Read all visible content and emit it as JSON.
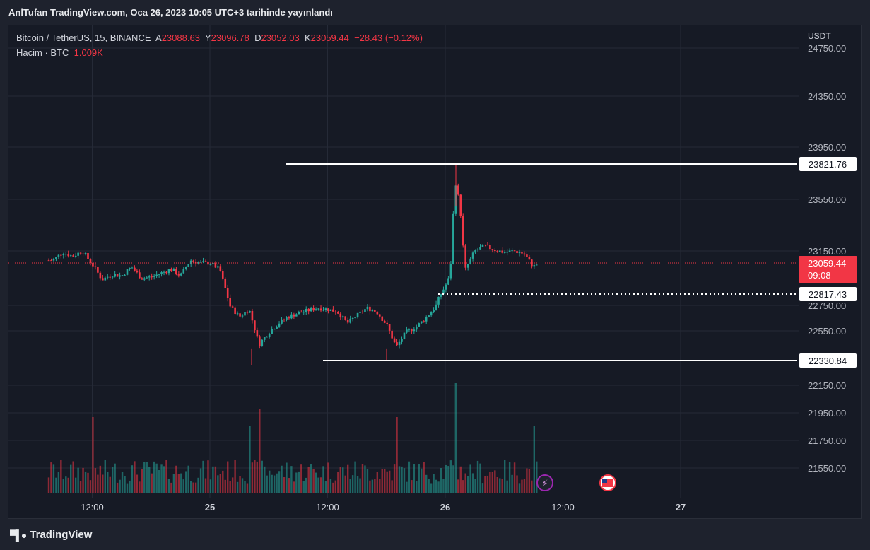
{
  "header": {
    "published_text": "AnlTufan TradingView.com, Oca 26, 2023 10:05 UTC+3 tarihinde yayınlandı"
  },
  "legend": {
    "symbol": "Bitcoin / TetherUS, 15, BINANCE",
    "open_label": "A",
    "open": "23088.63",
    "high_label": "Y",
    "high": "23096.78",
    "low_label": "D",
    "low": "23052.03",
    "close_label": "K",
    "close": "23059.44",
    "change": "−28.43 (−0.12%)",
    "volume_label": "Hacim · BTC",
    "volume": "1.009K"
  },
  "price_axis": {
    "currency": "USDT",
    "ticks": [
      "24750.00",
      "24350.00",
      "23950.00",
      "23550.00",
      "23150.00",
      "22750.00",
      "22550.00",
      "22150.00",
      "21950.00",
      "21750.00",
      "21550.00"
    ],
    "current_price": "23059.44",
    "countdown": "09:08"
  },
  "time_axis": {
    "ticks": [
      "12:00",
      "25",
      "12:00",
      "26",
      "12:00",
      "27"
    ]
  },
  "brand": {
    "name": "TradingView"
  },
  "colors": {
    "up": "#26a69a",
    "down": "#f23645",
    "current": "#f23645",
    "background": "#161a25",
    "grid": "#252a37"
  },
  "chart_data": {
    "type": "candlestick",
    "symbol": "Bitcoin / TetherUS",
    "interval": "15",
    "exchange": "BINANCE",
    "y_unit": "USDT",
    "horizontal_levels": [
      {
        "value": 23821.76,
        "style": "solid",
        "color": "#ffffff"
      },
      {
        "value": 22817.43,
        "style": "dotted",
        "color": "#ffffff"
      },
      {
        "value": 22330.84,
        "style": "solid",
        "color": "#ffffff"
      }
    ],
    "close_path": [
      [
        "2023-01-24 08:00",
        23080
      ],
      [
        "2023-01-24 09:00",
        23140
      ],
      [
        "2023-01-24 10:00",
        23110
      ],
      [
        "2023-01-24 11:00",
        23150
      ],
      [
        "2023-01-24 12:00",
        23050
      ],
      [
        "2023-01-24 13:00",
        22930
      ],
      [
        "2023-01-24 14:00",
        22970
      ],
      [
        "2023-01-24 15:00",
        22960
      ],
      [
        "2023-01-24 16:00",
        23030
      ],
      [
        "2023-01-24 17:00",
        22940
      ],
      [
        "2023-01-24 18:00",
        22950
      ],
      [
        "2023-01-24 19:00",
        22980
      ],
      [
        "2023-01-24 20:00",
        23010
      ],
      [
        "2023-01-24 21:00",
        22960
      ],
      [
        "2023-01-24 22:00",
        23080
      ],
      [
        "2023-01-24 23:00",
        23060
      ],
      [
        "2023-01-25 00:00",
        23060
      ],
      [
        "2023-01-25 01:00",
        23010
      ],
      [
        "2023-01-25 02:00",
        22750
      ],
      [
        "2023-01-25 03:00",
        22660
      ],
      [
        "2023-01-25 04:00",
        22720
      ],
      [
        "2023-01-25 05:00",
        22450
      ],
      [
        "2023-01-25 06:00",
        22540
      ],
      [
        "2023-01-25 07:00",
        22610
      ],
      [
        "2023-01-25 08:00",
        22660
      ],
      [
        "2023-01-25 09:00",
        22690
      ],
      [
        "2023-01-25 10:00",
        22710
      ],
      [
        "2023-01-25 11:00",
        22730
      ],
      [
        "2023-01-25 12:00",
        22720
      ],
      [
        "2023-01-25 13:00",
        22700
      ],
      [
        "2023-01-25 14:00",
        22610
      ],
      [
        "2023-01-25 15:00",
        22670
      ],
      [
        "2023-01-25 16:00",
        22730
      ],
      [
        "2023-01-25 17:00",
        22700
      ],
      [
        "2023-01-25 18:00",
        22600
      ],
      [
        "2023-01-25 19:00",
        22430
      ],
      [
        "2023-01-25 20:00",
        22540
      ],
      [
        "2023-01-25 21:00",
        22580
      ],
      [
        "2023-01-25 22:00",
        22650
      ],
      [
        "2023-01-25 23:00",
        22740
      ],
      [
        "2023-01-26 00:00",
        22880
      ],
      [
        "2023-01-26 00:30",
        22960
      ],
      [
        "2023-01-26 01:00",
        23700
      ],
      [
        "2023-01-26 01:30",
        23500
      ],
      [
        "2023-01-26 02:00",
        23000
      ],
      [
        "2023-01-26 03:00",
        23150
      ],
      [
        "2023-01-26 04:00",
        23190
      ],
      [
        "2023-01-26 05:00",
        23160
      ],
      [
        "2023-01-26 06:00",
        23140
      ],
      [
        "2023-01-26 07:00",
        23150
      ],
      [
        "2023-01-26 08:00",
        23130
      ],
      [
        "2023-01-26 09:00",
        23030
      ],
      [
        "2023-01-26 09:30",
        23059.44
      ]
    ],
    "volume_spikes": [
      [
        "2023-01-24 12:00",
        0.9
      ],
      [
        "2023-01-25 04:00",
        0.8
      ],
      [
        "2023-01-25 05:00",
        1.0
      ],
      [
        "2023-01-25 19:00",
        0.9
      ],
      [
        "2023-01-26 01:00",
        1.3
      ],
      [
        "2023-01-26 09:00",
        0.8
      ]
    ]
  }
}
